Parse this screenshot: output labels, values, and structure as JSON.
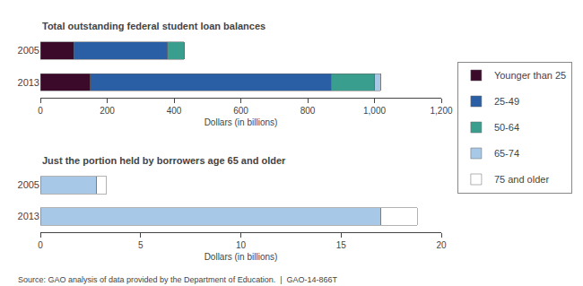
{
  "chart_data": [
    {
      "type": "bar",
      "title": "Total outstanding federal student loan balances",
      "orientation": "horizontal",
      "stacked": true,
      "grid": false,
      "legend": "right",
      "xlabel": "Dollars (in billions)",
      "categories": [
        "2005",
        "2013"
      ],
      "series": [
        {
          "name": "Younger than 25",
          "color": "#3b0a2a",
          "values": [
            100,
            150
          ]
        },
        {
          "name": "25-49",
          "color": "#2b5fa5",
          "values": [
            280,
            720
          ]
        },
        {
          "name": "50-64",
          "color": "#3a9e8f",
          "values": [
            50,
            130
          ]
        },
        {
          "name": "65-74",
          "color": "#a8c8e8",
          "values": [
            0,
            18
          ]
        },
        {
          "name": "75 and older",
          "color": "#ffffff",
          "values": [
            0,
            0
          ]
        }
      ],
      "xlim": [
        0,
        1200
      ],
      "xticks": [
        0,
        200,
        400,
        600,
        800,
        {
          "value": 1000,
          "label": "1,000"
        },
        {
          "value": 1200,
          "label": "1,200"
        }
      ]
    },
    {
      "type": "bar",
      "title": "Just the portion held by borrowers age 65 and older",
      "orientation": "horizontal",
      "stacked": true,
      "grid": false,
      "xlabel": "Dollars (in billions)",
      "categories": [
        "2005",
        "2013"
      ],
      "series": [
        {
          "name": "65-74",
          "color": "#a8c8e8",
          "values": [
            2.8,
            17.0
          ]
        },
        {
          "name": "75 and older",
          "color": "#ffffff",
          "values": [
            0.5,
            1.8
          ]
        }
      ],
      "xlim": [
        0,
        20
      ],
      "xticks": [
        0,
        5,
        10,
        15,
        20
      ],
      "annotations": [
        "Source: GAO analysis of data provided by the Department of Education.  |  GAO-14-866T"
      ]
    }
  ]
}
